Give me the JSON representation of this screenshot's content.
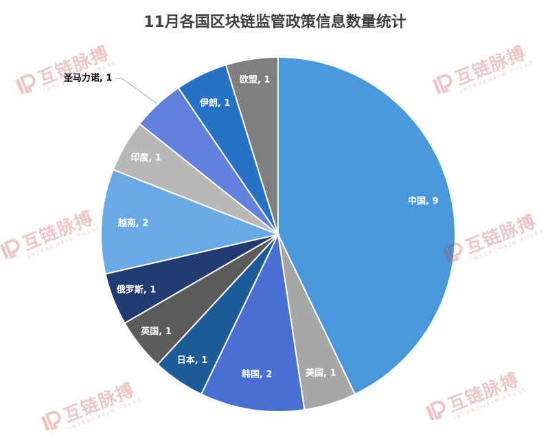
{
  "chart_data": {
    "type": "pie",
    "title": "11月各国区块链监管政策信息数量统计",
    "categories": [
      "中国",
      "美国",
      "韩国",
      "日本",
      "英国",
      "俄罗斯",
      "越南",
      "印度",
      "圣马力诺",
      "伊朗",
      "欧盟"
    ],
    "values": [
      9,
      1,
      2,
      1,
      1,
      1,
      2,
      1,
      1,
      1,
      1
    ],
    "labels": [
      "中国, 9",
      "美国, 1",
      "韩国, 2",
      "日本, 1",
      "英国, 1",
      "俄罗斯, 1",
      "越南, 2",
      "印度, 1",
      "圣马力诺, 1",
      "伊朗, 1",
      "欧盟, 1"
    ],
    "colors": [
      "#4a98dc",
      "#a7a7a7",
      "#4a6fd2",
      "#1e5c99",
      "#5b5b5b",
      "#233b73",
      "#6aa9e3",
      "#b8b8b8",
      "#6281dc",
      "#2771c7",
      "#7f7f7f"
    ],
    "label_colors": [
      "#ffffff",
      "#ffffff",
      "#ffffff",
      "#ffffff",
      "#ffffff",
      "#ffffff",
      "#ffffff",
      "#ffffff",
      "#000000",
      "#ffffff",
      "#ffffff"
    ],
    "start": "12 o'clock",
    "direction": "clockwise",
    "legend": "none"
  },
  "watermark": {
    "text": "互链脉搏",
    "subtext": "INTERCHAIN PULSE",
    "color": "#c0392b"
  }
}
